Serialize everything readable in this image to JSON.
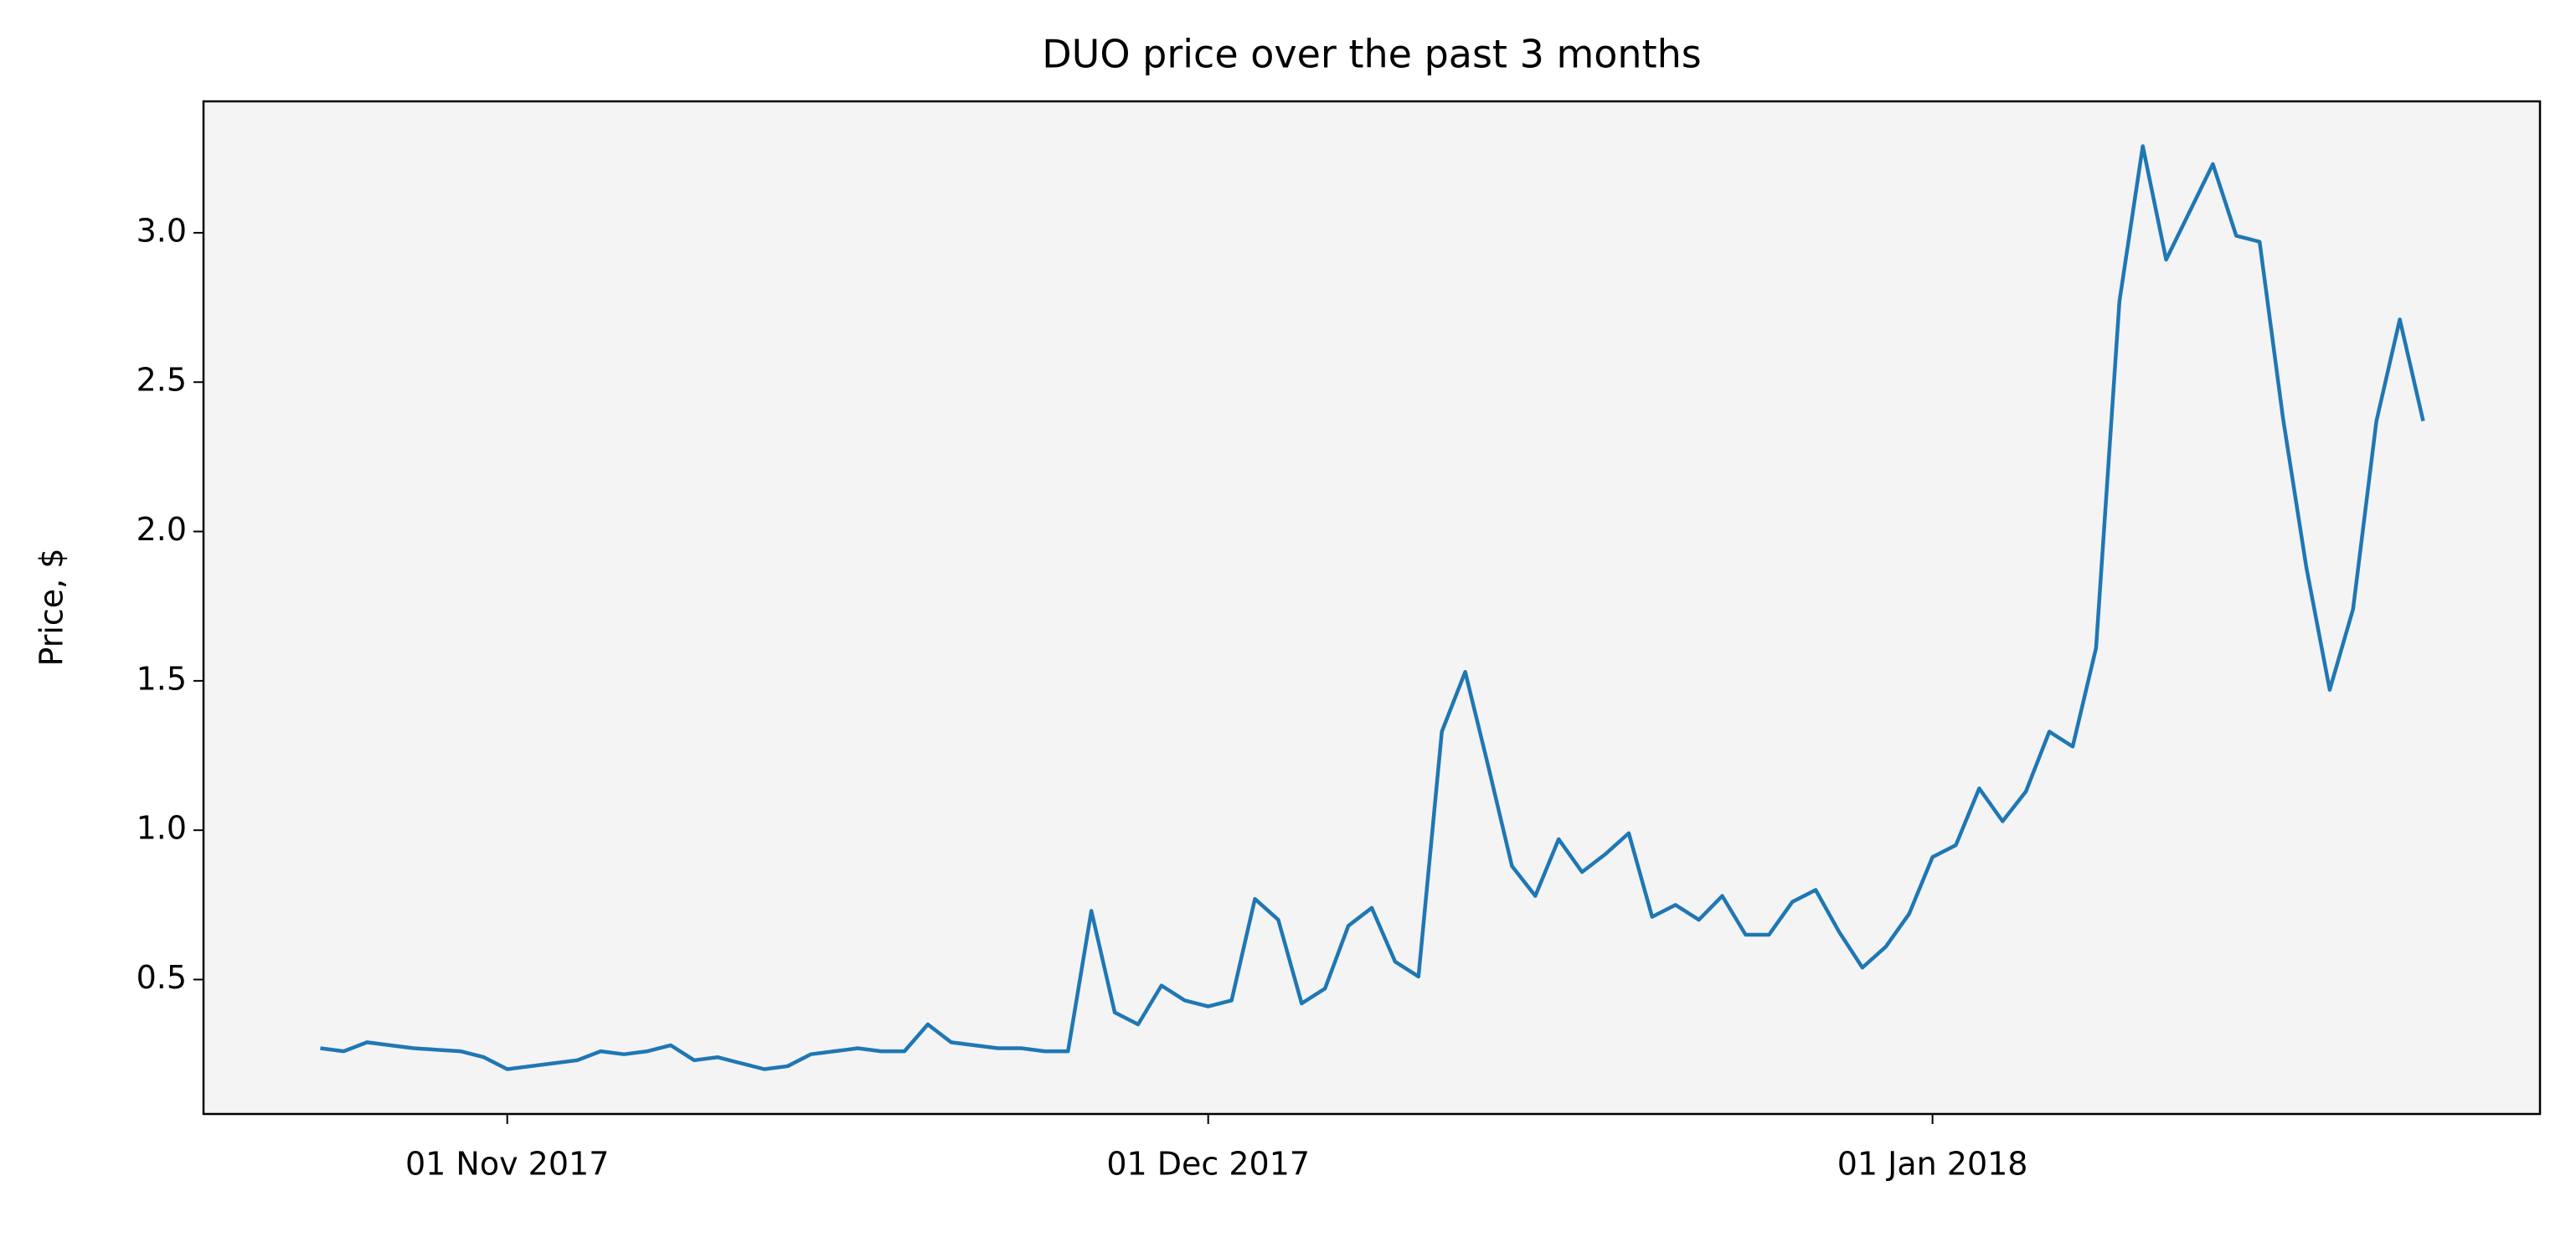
{
  "chart_data": {
    "type": "line",
    "title": "DUO price over the past 3 months",
    "ylabel": "Price, $",
    "x": [
      "2017-10-24",
      "2017-10-25",
      "2017-10-26",
      "2017-10-27",
      "2017-10-28",
      "2017-10-29",
      "2017-10-30",
      "2017-10-31",
      "2017-11-01",
      "2017-11-02",
      "2017-11-03",
      "2017-11-04",
      "2017-11-05",
      "2017-11-06",
      "2017-11-07",
      "2017-11-08",
      "2017-11-09",
      "2017-11-10",
      "2017-11-11",
      "2017-11-12",
      "2017-11-13",
      "2017-11-14",
      "2017-11-15",
      "2017-11-16",
      "2017-11-17",
      "2017-11-18",
      "2017-11-19",
      "2017-11-20",
      "2017-11-21",
      "2017-11-22",
      "2017-11-23",
      "2017-11-24",
      "2017-11-25",
      "2017-11-26",
      "2017-11-27",
      "2017-11-28",
      "2017-11-29",
      "2017-11-30",
      "2017-12-01",
      "2017-12-02",
      "2017-12-03",
      "2017-12-04",
      "2017-12-05",
      "2017-12-06",
      "2017-12-07",
      "2017-12-08",
      "2017-12-09",
      "2017-12-10",
      "2017-12-11",
      "2017-12-12",
      "2017-12-13",
      "2017-12-14",
      "2017-12-15",
      "2017-12-16",
      "2017-12-17",
      "2017-12-18",
      "2017-12-19",
      "2017-12-20",
      "2017-12-21",
      "2017-12-22",
      "2017-12-23",
      "2017-12-24",
      "2017-12-25",
      "2017-12-26",
      "2017-12-27",
      "2017-12-28",
      "2017-12-29",
      "2017-12-30",
      "2017-12-31",
      "2018-01-01",
      "2018-01-02",
      "2018-01-03",
      "2018-01-04",
      "2018-01-05",
      "2018-01-06",
      "2018-01-07",
      "2018-01-08",
      "2018-01-09",
      "2018-01-10",
      "2018-01-11",
      "2018-01-12",
      "2018-01-13",
      "2018-01-14",
      "2018-01-15",
      "2018-01-16",
      "2018-01-17",
      "2018-01-18",
      "2018-01-19",
      "2018-01-20",
      "2018-01-21",
      "2018-01-22"
    ],
    "values": [
      0.27,
      0.26,
      0.29,
      0.28,
      0.27,
      0.265,
      0.26,
      0.24,
      0.2,
      0.21,
      0.22,
      0.23,
      0.26,
      0.25,
      0.26,
      0.28,
      0.23,
      0.24,
      0.22,
      0.2,
      0.21,
      0.25,
      0.26,
      0.27,
      0.26,
      0.26,
      0.35,
      0.29,
      0.28,
      0.27,
      0.27,
      0.26,
      0.26,
      0.73,
      0.39,
      0.35,
      0.48,
      0.43,
      0.41,
      0.43,
      0.77,
      0.7,
      0.42,
      0.47,
      0.68,
      0.74,
      0.56,
      0.51,
      1.33,
      1.53,
      1.21,
      0.88,
      0.78,
      0.97,
      0.86,
      0.92,
      0.99,
      0.71,
      0.75,
      0.7,
      0.78,
      0.65,
      0.65,
      0.76,
      0.8,
      0.66,
      0.54,
      0.61,
      0.72,
      0.91,
      0.95,
      1.14,
      1.03,
      1.13,
      1.33,
      1.28,
      1.61,
      2.77,
      3.29,
      2.91,
      3.07,
      3.23,
      2.99,
      2.97,
      2.38,
      1.88,
      1.47,
      1.74,
      2.37,
      2.71,
      2.37
    ],
    "color": "#1f77b4",
    "xlim": [
      "2017-10-19",
      "2018-01-27"
    ],
    "xticks": [
      {
        "value": "2017-11-01",
        "label": "01 Nov 2017"
      },
      {
        "value": "2017-12-01",
        "label": "01 Dec 2017"
      },
      {
        "value": "2018-01-01",
        "label": "01 Jan 2018"
      }
    ],
    "ylim": [
      0.05,
      3.44
    ],
    "yticks": [
      0.5,
      {
        "value": 1,
        "label": "1.0"
      },
      1.5,
      {
        "value": 2,
        "label": "2.0"
      },
      2.5,
      {
        "value": 3,
        "label": "3.0"
      }
    ],
    "background": "#f4f4f4"
  }
}
